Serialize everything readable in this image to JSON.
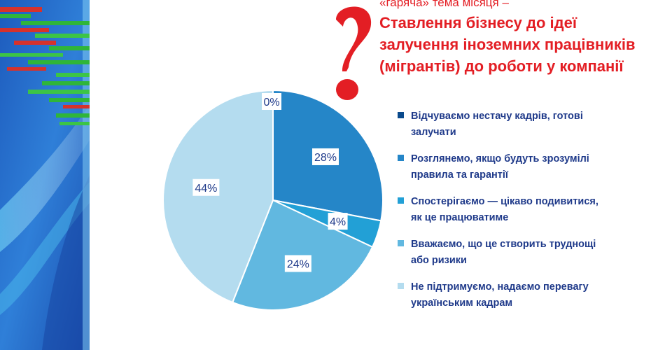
{
  "header": {
    "title_line1": "«гаряча» тема місяця –",
    "title_lines": [
      "Ставлення бізнесу до ідеї",
      "залучення іноземних працівників",
      "(мігрантів) до роботи у компанії"
    ]
  },
  "chart_data": {
    "type": "pie",
    "title": "Ставлення бізнесу до ідеї залучення іноземних працівників (мігрантів) до роботи у компанії",
    "slices": [
      {
        "label": "Відчуваємо нестачу кадрів, готові залучати",
        "value": 0,
        "value_label": "0%",
        "color": "#0a4a8c"
      },
      {
        "label": "Розглянемо, якщо будуть зрозумілі правила та гарантії",
        "value": 28,
        "value_label": "28%",
        "color": "#2586c8"
      },
      {
        "label": "Спостерігаємо — цікаво подивитися, як це працюватиме",
        "value": 4,
        "value_label": "4%",
        "color": "#22a0d6"
      },
      {
        "label": "Вважаємо, що це створить труднощі або ризики",
        "value": 24,
        "value_label": "24%",
        "color": "#61b8e0"
      },
      {
        "label": "Не підтримуємо, надаємо перевагу українським кадрам",
        "value": 44,
        "value_label": "44%",
        "color": "#b4dcef"
      }
    ],
    "legend_position": "right"
  },
  "legend": {
    "items": [
      {
        "text": "Відчуваємо нестачу кадрів, готові залучати",
        "color": "#0a4a8c"
      },
      {
        "text": "Розглянемо, якщо будуть зрозумілі правила та гарантії",
        "color": "#2586c8"
      },
      {
        "text": "Спостерігаємо — цікаво подивитися, як це працюватиме",
        "color": "#22a0d6"
      },
      {
        "text": "Вважаємо, що це створить труднощі або ризики",
        "color": "#61b8e0"
      },
      {
        "text": "Не підтримуємо, надаємо перевагу українським кадрам",
        "color": "#b4dcef"
      }
    ]
  },
  "theme": {
    "accent_red": "#e31e24",
    "text_blue": "#1f3a8a",
    "band_blue": "#2a66c4",
    "band_green": "#2fb53a",
    "band_red": "#d6322c"
  }
}
